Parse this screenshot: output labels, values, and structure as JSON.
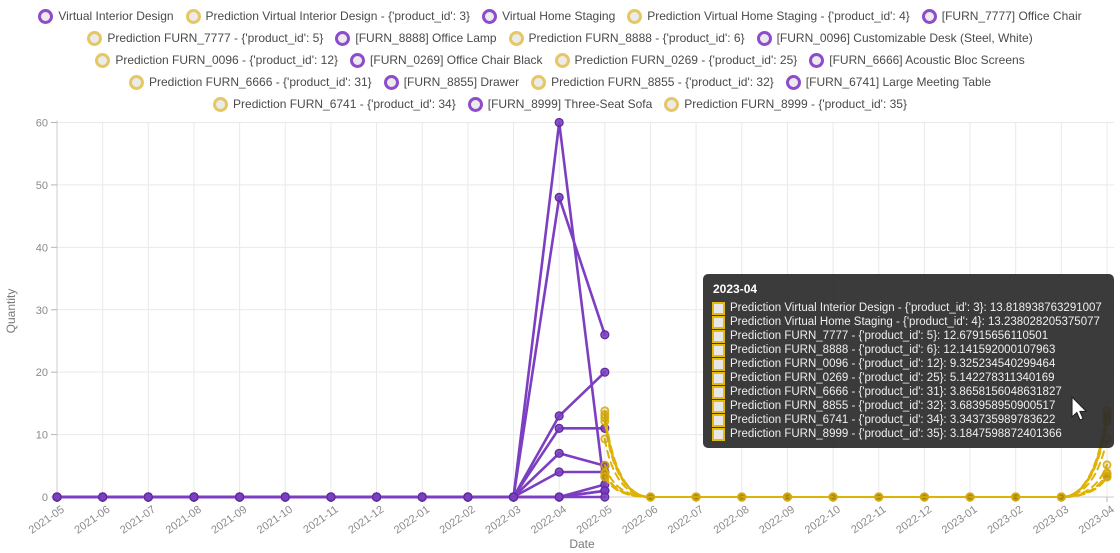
{
  "legend": {
    "items": [
      {
        "label": "Virtual Interior Design",
        "kind": "actual"
      },
      {
        "label": "Prediction Virtual Interior Design - {'product_id': 3}",
        "kind": "prediction"
      },
      {
        "label": "Virtual Home Staging",
        "kind": "actual"
      },
      {
        "label": "Prediction Virtual Home Staging - {'product_id': 4}",
        "kind": "prediction"
      },
      {
        "label": "[FURN_7777] Office Chair",
        "kind": "actual"
      },
      {
        "label": "Prediction FURN_7777 - {'product_id': 5}",
        "kind": "prediction"
      },
      {
        "label": "[FURN_8888] Office Lamp",
        "kind": "actual"
      },
      {
        "label": "Prediction FURN_8888 - {'product_id': 6}",
        "kind": "prediction"
      },
      {
        "label": "[FURN_0096] Customizable Desk (Steel, White)",
        "kind": "actual"
      },
      {
        "label": "Prediction FURN_0096 - {'product_id': 12}",
        "kind": "prediction"
      },
      {
        "label": "[FURN_0269] Office Chair Black",
        "kind": "actual"
      },
      {
        "label": "Prediction FURN_0269 - {'product_id': 25}",
        "kind": "prediction"
      },
      {
        "label": "[FURN_6666] Acoustic Bloc Screens",
        "kind": "actual"
      },
      {
        "label": "Prediction FURN_6666 - {'product_id': 31}",
        "kind": "prediction"
      },
      {
        "label": "[FURN_8855] Drawer",
        "kind": "actual"
      },
      {
        "label": "Prediction FURN_8855 - {'product_id': 32}",
        "kind": "prediction"
      },
      {
        "label": "[FURN_6741] Large Meeting Table",
        "kind": "actual"
      },
      {
        "label": "Prediction FURN_6741 - {'product_id': 34}",
        "kind": "prediction"
      },
      {
        "label": "[FURN_8999] Three-Seat Sofa",
        "kind": "actual"
      },
      {
        "label": "Prediction FURN_8999 - {'product_id': 35}",
        "kind": "prediction"
      }
    ]
  },
  "axes": {
    "x_title": "Date",
    "y_title": "Quantity",
    "y_ticks": [
      0,
      10,
      20,
      30,
      40,
      50,
      60
    ]
  },
  "tooltip": {
    "title": "2023-04",
    "rows": [
      {
        "label": "Prediction Virtual Interior Design - {'product_id': 3}",
        "value": "13.818938763291007"
      },
      {
        "label": "Prediction Virtual Home Staging - {'product_id': 4}",
        "value": "13.238028205375077"
      },
      {
        "label": "Prediction FURN_7777 - {'product_id': 5}",
        "value": "12.67915656110501"
      },
      {
        "label": "Prediction FURN_8888 - {'product_id': 6}",
        "value": "12.141592000107963"
      },
      {
        "label": "Prediction FURN_0096 - {'product_id': 12}",
        "value": "9.325234540299464"
      },
      {
        "label": "Prediction FURN_0269 - {'product_id': 25}",
        "value": "5.142278311340169"
      },
      {
        "label": "Prediction FURN_6666 - {'product_id': 31}",
        "value": "3.8658156048631827"
      },
      {
        "label": "Prediction FURN_8855 - {'product_id': 32}",
        "value": "3.683958950900517"
      },
      {
        "label": "Prediction FURN_6741 - {'product_id': 34}",
        "value": "3.343735989783622"
      },
      {
        "label": "Prediction FURN_8999 - {'product_id': 35}",
        "value": "3.1847598872401366"
      }
    ]
  },
  "colors": {
    "actual_line": "#7d3fc1",
    "actual_marker_edge": "#5a2b99",
    "prediction_line": "#dfb306",
    "prediction_marker_edge": "#d4a90b",
    "prediction_marker_fill": "#8a6d00",
    "legend_actual_ring": "#8e4ccc",
    "legend_prediction_ring": "#e5c863",
    "tooltip_swatch_border": "#e4bb0c",
    "grid": "#e9e9e9",
    "axis_line": "#cccccc",
    "tick_mark": "#b5b5b5",
    "tick_text": "#8a8a8a"
  },
  "chart_data": {
    "type": "line",
    "title": "",
    "xlabel": "Date",
    "ylabel": "Quantity",
    "ylim": [
      0,
      60
    ],
    "grid": true,
    "legend_position": "top",
    "x": [
      "2021-05",
      "2021-06",
      "2021-07",
      "2021-08",
      "2021-09",
      "2021-10",
      "2021-11",
      "2021-12",
      "2022-01",
      "2022-02",
      "2022-03",
      "2022-04",
      "2022-05",
      "2022-06",
      "2022-07",
      "2022-08",
      "2022-09",
      "2022-10",
      "2022-11",
      "2022-12",
      "2023-01",
      "2023-02",
      "2023-03",
      "2023-04"
    ],
    "series": [
      {
        "name": "Virtual Interior Design",
        "kind": "actual",
        "start_index": 0,
        "values": [
          0,
          0,
          0,
          0,
          0,
          0,
          0,
          0,
          0,
          0,
          0,
          60,
          1
        ]
      },
      {
        "name": "Virtual Home Staging",
        "kind": "actual",
        "start_index": 0,
        "values": [
          0,
          0,
          0,
          0,
          0,
          0,
          0,
          0,
          0,
          0,
          0,
          48,
          26
        ]
      },
      {
        "name": "[FURN_7777] Office Chair",
        "kind": "actual",
        "start_index": 0,
        "values": [
          0,
          0,
          0,
          0,
          0,
          0,
          0,
          0,
          0,
          0,
          0,
          13,
          20
        ]
      },
      {
        "name": "[FURN_8888] Office Lamp",
        "kind": "actual",
        "start_index": 0,
        "values": [
          0,
          0,
          0,
          0,
          0,
          0,
          0,
          0,
          0,
          0,
          0,
          11,
          11
        ]
      },
      {
        "name": "[FURN_0096] Customizable Desk (Steel, White)",
        "kind": "actual",
        "start_index": 0,
        "values": [
          0,
          0,
          0,
          0,
          0,
          0,
          0,
          0,
          0,
          0,
          0,
          7,
          5
        ]
      },
      {
        "name": "[FURN_0269] Office Chair Black",
        "kind": "actual",
        "start_index": 0,
        "values": [
          0,
          0,
          0,
          0,
          0,
          0,
          0,
          0,
          0,
          0,
          0,
          4,
          4
        ]
      },
      {
        "name": "[FURN_6666] Acoustic Bloc Screens",
        "kind": "actual",
        "start_index": 0,
        "values": [
          0,
          0,
          0,
          0,
          0,
          0,
          0,
          0,
          0,
          0,
          0,
          0,
          2
        ]
      },
      {
        "name": "[FURN_8855] Drawer",
        "kind": "actual",
        "start_index": 0,
        "values": [
          0,
          0,
          0,
          0,
          0,
          0,
          0,
          0,
          0,
          0,
          0,
          0,
          1
        ]
      },
      {
        "name": "[FURN_6741] Large Meeting Table",
        "kind": "actual",
        "start_index": 0,
        "values": [
          0,
          0,
          0,
          0,
          0,
          0,
          0,
          0,
          0,
          0,
          0,
          0,
          1
        ]
      },
      {
        "name": "[FURN_8999] Three-Seat Sofa",
        "kind": "actual",
        "start_index": 0,
        "values": [
          0,
          0,
          0,
          0,
          0,
          0,
          0,
          0,
          0,
          0,
          0,
          0,
          0
        ]
      },
      {
        "name": "Prediction Virtual Interior Design - {'product_id': 3}",
        "kind": "prediction",
        "start_index": 12,
        "values": [
          13.8,
          0,
          0,
          0,
          0,
          0,
          0,
          0,
          0,
          0,
          0,
          13.818938763291007
        ]
      },
      {
        "name": "Prediction Virtual Home Staging - {'product_id': 4}",
        "kind": "prediction",
        "start_index": 12,
        "values": [
          13.2,
          0,
          0,
          0,
          0,
          0,
          0,
          0,
          0,
          0,
          0,
          13.238028205375077
        ]
      },
      {
        "name": "Prediction FURN_7777 - {'product_id': 5}",
        "kind": "prediction",
        "start_index": 12,
        "values": [
          12.7,
          0,
          0,
          0,
          0,
          0,
          0,
          0,
          0,
          0,
          0,
          12.67915656110501
        ]
      },
      {
        "name": "Prediction FURN_8888 - {'product_id': 6}",
        "kind": "prediction",
        "start_index": 12,
        "values": [
          12.1,
          0,
          0,
          0,
          0,
          0,
          0,
          0,
          0,
          0,
          0,
          12.141592000107963
        ]
      },
      {
        "name": "Prediction FURN_0096 - {'product_id': 12}",
        "kind": "prediction",
        "start_index": 12,
        "values": [
          9.3,
          0,
          0,
          0,
          0,
          0,
          0,
          0,
          0,
          0,
          0,
          9.325234540299464
        ]
      },
      {
        "name": "Prediction FURN_0269 - {'product_id': 25}",
        "kind": "prediction",
        "start_index": 12,
        "values": [
          5.1,
          0,
          0,
          0,
          0,
          0,
          0,
          0,
          0,
          0,
          0,
          5.142278311340169
        ]
      },
      {
        "name": "Prediction FURN_6666 - {'product_id': 31}",
        "kind": "prediction",
        "start_index": 12,
        "values": [
          3.9,
          0,
          0,
          0,
          0,
          0,
          0,
          0,
          0,
          0,
          0,
          3.8658156048631827
        ]
      },
      {
        "name": "Prediction FURN_8855 - {'product_id': 32}",
        "kind": "prediction",
        "start_index": 12,
        "values": [
          3.7,
          0,
          0,
          0,
          0,
          0,
          0,
          0,
          0,
          0,
          0,
          3.683958950900517
        ]
      },
      {
        "name": "Prediction FURN_6741 - {'product_id': 34}",
        "kind": "prediction",
        "start_index": 12,
        "values": [
          3.3,
          0,
          0,
          0,
          0,
          0,
          0,
          0,
          0,
          0,
          0,
          3.343735989783622
        ]
      },
      {
        "name": "Prediction FURN_8999 - {'product_id': 35}",
        "kind": "prediction",
        "start_index": 12,
        "values": [
          3.2,
          0,
          0,
          0,
          0,
          0,
          0,
          0,
          0,
          0,
          0,
          3.1847598872401366
        ]
      }
    ]
  }
}
